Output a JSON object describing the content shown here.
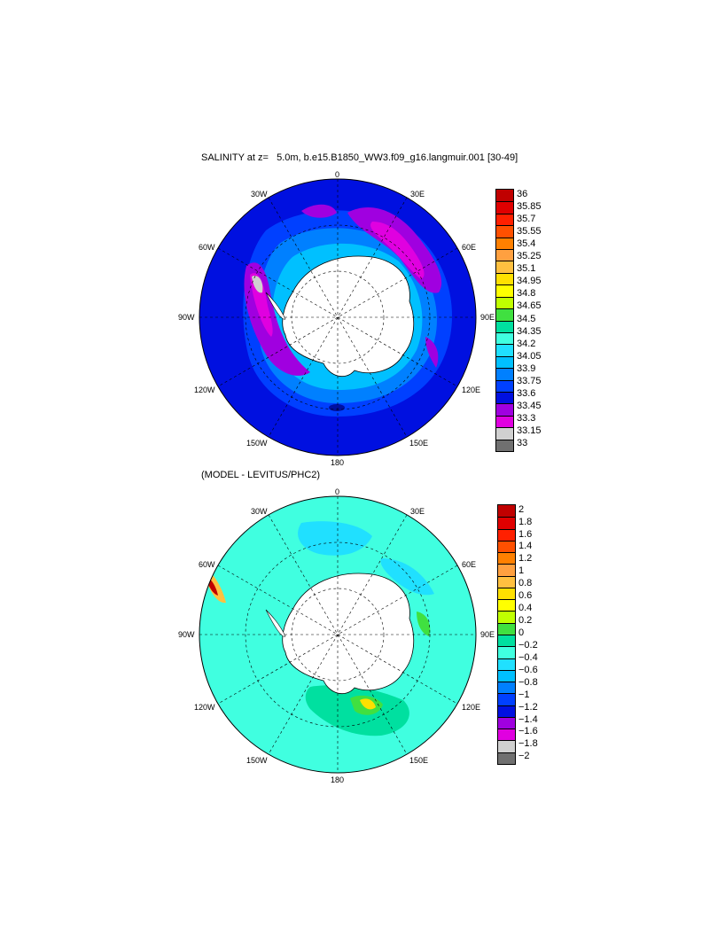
{
  "panel1": {
    "title": "SALINITY at z=   5.0m, b.e15.B1850_WW3.f09_g16.langmuir.001 [30-49]",
    "lon_labels": {
      "n0": "0",
      "n30w": "30W",
      "n30e": "30E",
      "n60w": "60W",
      "n60e": "60E",
      "n90w": "90W",
      "n90e": "90E",
      "n120w": "120W",
      "n120e": "120E",
      "n150w": "150W",
      "n150e": "150E",
      "n180": "180"
    },
    "colorbar": {
      "labels": [
        "36",
        "35.85",
        "35.7",
        "35.55",
        "35.4",
        "35.25",
        "35.1",
        "34.95",
        "34.8",
        "34.65",
        "34.5",
        "34.35",
        "34.2",
        "34.05",
        "33.9",
        "33.75",
        "33.6",
        "33.45",
        "33.3",
        "33.15",
        "33"
      ],
      "colors": [
        "#c00000",
        "#e00000",
        "#ff2000",
        "#ff5000",
        "#ff8000",
        "#ffa040",
        "#ffc040",
        "#ffe000",
        "#ffff00",
        "#c0ff00",
        "#40e040",
        "#00e0a0",
        "#40ffe0",
        "#20e0ff",
        "#00c0ff",
        "#0080ff",
        "#0040ff",
        "#0010e0",
        "#a000e0",
        "#e000e0",
        "#d0d0d0",
        "#707070"
      ]
    }
  },
  "panel2": {
    "title": "(MODEL - LEVITUS/PHC2)",
    "lon_labels": {
      "n0": "0",
      "n30w": "30W",
      "n30e": "30E",
      "n60w": "60W",
      "n60e": "60E",
      "n90w": "90W",
      "n90e": "90E",
      "n120w": "120W",
      "n120e": "120E",
      "n150w": "150W",
      "n150e": "150E",
      "n180": "180"
    },
    "colorbar": {
      "labels": [
        "2",
        "1.8",
        "1.6",
        "1.4",
        "1.2",
        "1",
        "0.8",
        "0.6",
        "0.4",
        "0.2",
        "0",
        "−0.2",
        "−0.4",
        "−0.6",
        "−0.8",
        "−1",
        "−1.2",
        "−1.4",
        "−1.6",
        "−1.8",
        "−2"
      ],
      "colors": [
        "#c00000",
        "#e00000",
        "#ff2000",
        "#ff5000",
        "#ff8000",
        "#ffa040",
        "#ffc040",
        "#ffe000",
        "#ffff00",
        "#c0ff00",
        "#40e040",
        "#00e0a0",
        "#40ffe0",
        "#20e0ff",
        "#00c0ff",
        "#0080ff",
        "#0040ff",
        "#0010e0",
        "#a000e0",
        "#e000e0",
        "#d0d0d0",
        "#707070"
      ]
    }
  }
}
